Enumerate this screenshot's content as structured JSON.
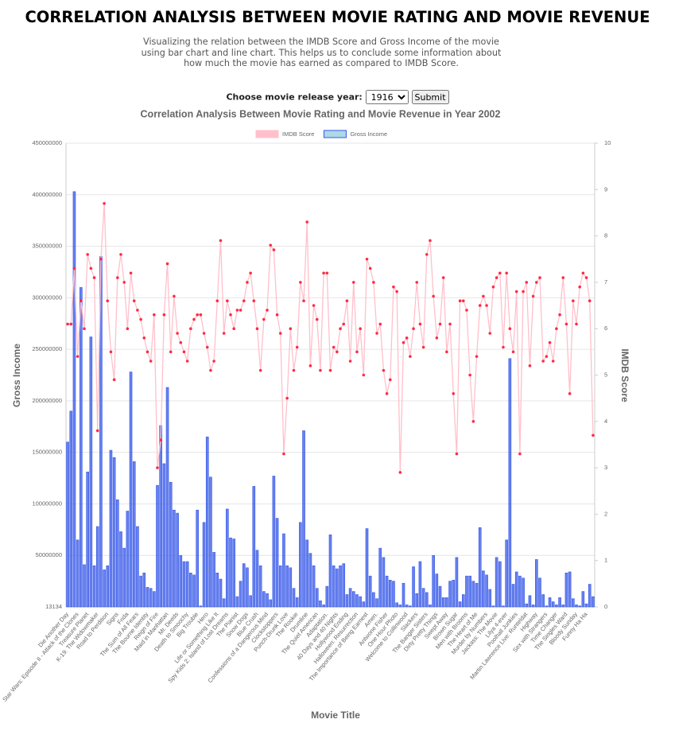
{
  "header": {
    "title": "CORRELATION ANALYSIS BETWEEN MOVIE RATING AND MOVIE REVENUE",
    "subtitle": "Visualizing the relation between the IMDB Score and Gross Income of the movie using bar chart and line chart. This helps us to conclude some information about how much the movie has earned as compared to IMDB Score."
  },
  "form": {
    "label": "Choose movie release year:",
    "selected": "1916",
    "button": "Submit"
  },
  "chart_data": {
    "type": "bar",
    "title": "Correlation Analysis Between Movie Rating and Movie Revenue in Year 2002",
    "x_label": "Movie Title",
    "y_label": "Gross Income",
    "y2_label": "IMDB Score",
    "ylim": [
      13134,
      450000000
    ],
    "yticks": [
      13134,
      50000000,
      100000000,
      150000000,
      200000000,
      250000000,
      300000000,
      350000000,
      400000000,
      450000000
    ],
    "y2lim": [
      0,
      10
    ],
    "y2ticks": [
      0,
      1,
      2,
      3,
      4,
      5,
      6,
      7,
      8,
      9,
      10
    ],
    "grid": true,
    "legend": "top",
    "categories": [
      "Die Another Day",
      null,
      null,
      "Star Wars: Episode II - Attack of the Clones",
      null,
      null,
      "Treasure Planet",
      null,
      null,
      "K-19: The Widowmaker",
      null,
      null,
      "Road to Perdition",
      null,
      null,
      "Signs",
      null,
      null,
      "Frida",
      null,
      null,
      "The Sum of All Fears",
      null,
      null,
      "The Bourne Identity",
      null,
      null,
      "Reign of Fire",
      null,
      null,
      "Maid in Manhattan",
      null,
      null,
      "Mr. Deeds",
      null,
      null,
      "Death to Smoochy",
      null,
      null,
      "Big Trouble",
      null,
      null,
      "Hero",
      null,
      null,
      "Life or Something Like It",
      null,
      null,
      "Spy Kids 2: Island of Lost Dreams",
      null,
      null,
      "The Pianist",
      null,
      null,
      "Snow Dogs",
      null,
      null,
      "Blue Crush",
      null,
      null,
      "Confessions of a Dangerous Mind",
      null,
      null,
      "Clockstoppers",
      null,
      null,
      "Punch-Drunk Love",
      null,
      null,
      "The Rookie",
      null,
      null,
      "Drumline",
      null,
      null,
      "The Quiet American",
      null,
      null,
      "Adaptation.",
      null,
      null,
      "40 Days and 40 Nights",
      null,
      null,
      "Hollywood Ending",
      null,
      null,
      "Halloween: Resurrection",
      null,
      null,
      "The Importance of Being Earnest",
      null,
      null,
      "Amen.",
      null,
      null,
      "Antwone Fisher",
      null,
      null,
      "One Hour Photo",
      null,
      null,
      "Welcome to Collinwood",
      null,
      null,
      "Slackers",
      null,
      null,
      "The Banger Sisters",
      null,
      null,
      "Dirty Pretty Things",
      null,
      null,
      "Swept Away",
      null,
      null,
      "Brown Sugar",
      null,
      null,
      "Men with Brooms",
      null,
      null,
      "The Heart of Me",
      null,
      null,
      "Murder by Numbers",
      null,
      null,
      "Jackass: The Movie",
      null,
      null,
      "Lilya 4-ever",
      null,
      null,
      "Poolhall Junkies",
      null,
      null,
      "Martin Lawrence Live: Runteldat",
      null,
      null,
      "Highway",
      null,
      null,
      "Sex with Strangers",
      null,
      null,
      "Time Changer",
      null,
      null,
      "The Singles Ward",
      null,
      null,
      "Bloody Sunday",
      null,
      null,
      "Funny Ha Ha",
      null,
      null
    ],
    "series": [
      {
        "name": "IMDB Score",
        "type": "line",
        "axis": "y2",
        "color": "#ffc0cb",
        "point_color": "#ff2b45",
        "values": [
          6.1,
          6.1,
          7.3,
          5.4,
          6.6,
          6.0,
          7.6,
          7.3,
          7.1,
          3.8,
          7.5,
          8.7,
          6.6,
          5.5,
          4.9,
          7.1,
          7.6,
          7.0,
          6.0,
          7.2,
          6.6,
          6.4,
          6.2,
          5.8,
          5.5,
          5.3,
          6.3,
          3.0,
          3.6,
          6.3,
          7.4,
          5.5,
          6.7,
          5.9,
          5.7,
          5.5,
          5.3,
          6.0,
          6.2,
          6.3,
          6.3,
          5.9,
          5.6,
          5.1,
          5.3,
          6.6,
          7.9,
          5.9,
          6.6,
          6.3,
          6.0,
          6.4,
          6.4,
          6.6,
          7.0,
          7.2,
          6.6,
          6.0,
          5.1,
          6.2,
          6.4,
          7.8,
          7.7,
          6.3,
          5.9,
          3.3,
          4.5,
          6.0,
          5.1,
          5.6,
          7.0,
          6.6,
          8.3,
          5.2,
          6.5,
          6.2,
          5.1,
          7.2,
          7.2,
          5.1,
          5.6,
          5.5,
          6.0,
          6.1,
          6.6,
          5.3,
          7.0,
          5.5,
          6.0,
          5.0,
          7.5,
          7.3,
          7.0,
          5.9,
          6.1,
          5.1,
          4.6,
          4.9,
          6.9,
          6.8,
          2.9,
          5.7,
          5.8,
          5.4,
          6.0,
          7.0,
          6.1,
          5.6,
          7.6,
          7.9,
          6.7,
          5.8,
          6.1,
          7.1,
          5.5,
          6.1,
          4.6,
          3.3,
          6.6,
          6.6,
          6.4,
          5.0,
          4.0,
          5.4,
          6.5,
          6.7,
          6.5,
          5.9,
          6.9,
          7.1,
          7.2,
          5.6,
          7.2,
          6.0,
          5.5,
          6.8,
          3.3,
          6.8,
          7.0,
          5.2,
          6.7,
          7.0,
          7.1,
          5.3,
          5.4,
          5.7,
          5.3,
          6.0,
          6.3,
          7.1,
          6.1,
          4.6,
          6.6,
          6.1,
          6.9,
          7.2,
          7.1,
          6.6,
          3.7
        ]
      },
      {
        "name": "Gross Income",
        "type": "bar",
        "axis": "y",
        "color": "#3557e8",
        "fill": "#add8e6",
        "values": [
          160000000.0,
          190000000.0,
          403000000.0,
          65000000.0,
          310000000.0,
          41000000.0,
          131000000.0,
          262000000.0,
          40000000.0,
          78000000.0,
          340000000.0,
          36000000.0,
          40000000.0,
          152000000.0,
          145000000.0,
          104000000.0,
          73000000.0,
          57000000.0,
          93000000.0,
          228000000.0,
          141000000.0,
          78000000.0,
          30000000.0,
          33000000.0,
          19000000.0,
          18000000.0,
          15000000.0,
          118000000.0,
          176000000.0,
          139000000.0,
          213000000.0,
          121000000.0,
          94000000.0,
          91000000.0,
          50000000.0,
          44000000.0,
          44000000.0,
          33000000.0,
          31000000.0,
          94000000.0,
          1000000.0,
          82000000.0,
          165000000.0,
          126000000.0,
          53000000.0,
          33000000.0,
          27000000.0,
          8000000.0,
          95000000.0,
          67000000.0,
          66000000.0,
          10000000.0,
          25000000.0,
          42000000.0,
          38000000.0,
          11000000.0,
          117000000.0,
          55000000.0,
          40000000.0,
          15000000.0,
          13000000.0,
          7000000.0,
          127000000.0,
          86000000.0,
          40000000.0,
          71000000.0,
          40000000.0,
          38000000.0,
          18000000.0,
          9000000.0,
          82000000.0,
          171000000.0,
          65000000.0,
          52000000.0,
          40000000.0,
          18000000.0,
          6000000.0,
          2000000.0,
          20000000.0,
          70000000.0,
          40000000.0,
          37000000.0,
          40000000.0,
          42000000.0,
          12000000.0,
          18000000.0,
          15000000.0,
          12000000.0,
          10000000.0,
          5000000.0,
          76000000.0,
          30000000.0,
          14000000.0,
          8000000.0,
          57000000.0,
          48000000.0,
          30000000.0,
          26000000.0,
          25000000.0,
          4000000.0,
          2000000.0,
          23000000.0,
          2000000.0,
          1000000.0,
          39000000.0,
          13000000.0,
          44000000.0,
          18000000.0,
          14000000.0,
          2000000.0,
          50000000.0,
          32000000.0,
          20000000.0,
          9000000.0,
          9000000.0,
          25000000.0,
          26000000.0,
          48000000.0,
          5000000.0,
          12000000.0,
          30000000.0,
          30000000.0,
          25000000.0,
          23000000.0,
          77000000.0,
          35000000.0,
          31000000.0,
          17000000.0,
          1000000.0,
          48000000.0,
          44000000.0,
          1000000.0,
          65000000.0,
          241000000.0,
          22000000.0,
          34000000.0,
          30000000.0,
          28000000.0,
          3000000.0,
          11000000.0,
          2000000.0,
          46000000.0,
          28000000.0,
          12000000.0,
          1000000.0,
          9000000.0,
          5000000.0,
          2000000.0,
          9000000.0,
          2000000.0,
          33000000.0,
          34000000.0,
          8000000.0,
          2000000.0,
          1000000.0,
          15000000.0,
          3000000.0,
          22000000.0,
          10000000.0
        ]
      }
    ]
  }
}
